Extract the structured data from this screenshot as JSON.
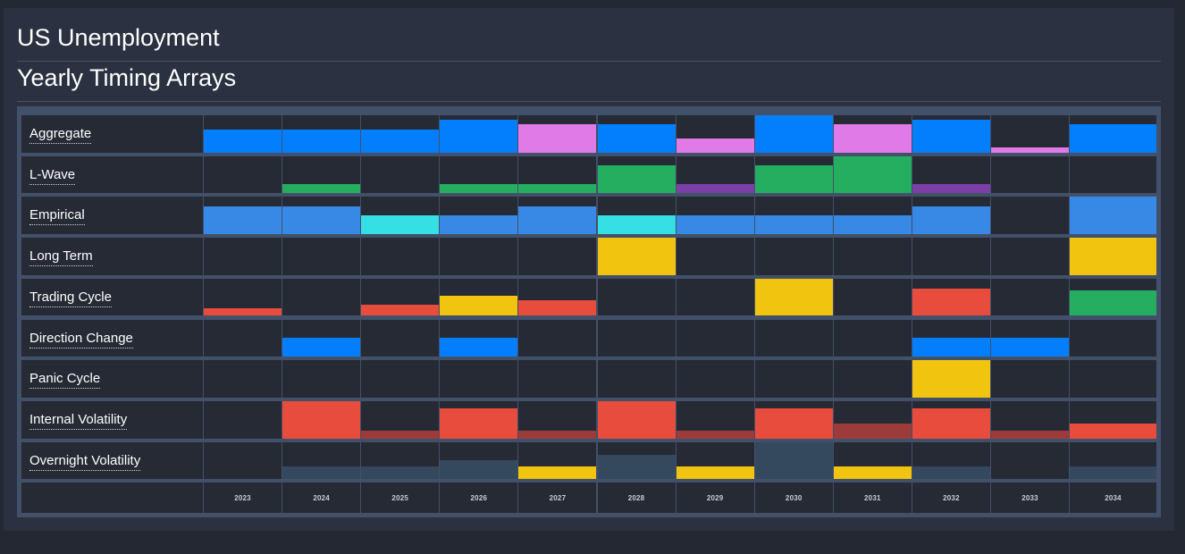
{
  "header": {
    "title": "US Unemployment",
    "subtitle": "Yearly Timing Arrays"
  },
  "colors": {
    "blue": "#037ffe",
    "pink": "#e07ae6",
    "green": "#25ae60",
    "purple": "#7b3fa6",
    "lightblue": "#3888e6",
    "cyan": "#36dfe3",
    "yellow": "#f1c40f",
    "red": "#e74c3c",
    "darkred": "#9c3c3a",
    "slate": "#34495e",
    "empty": "#262a35"
  },
  "chart_data": {
    "type": "heatmap",
    "title": "Yearly Timing Arrays",
    "ymax": 40,
    "years": [
      "2023",
      "2024",
      "2025",
      "2026",
      "2027",
      "2028",
      "2029",
      "2030",
      "2031",
      "2032",
      "2033",
      "2034"
    ],
    "rows": [
      {
        "label": "Aggregate",
        "cells": [
          {
            "v": 25,
            "c": "blue"
          },
          {
            "v": 25,
            "c": "blue"
          },
          {
            "v": 25,
            "c": "blue"
          },
          {
            "v": 35,
            "c": "blue"
          },
          {
            "v": 30,
            "c": "pink"
          },
          {
            "v": 30,
            "c": "blue"
          },
          {
            "v": 15,
            "c": "pink"
          },
          {
            "v": 40,
            "c": "blue"
          },
          {
            "v": 30,
            "c": "pink"
          },
          {
            "v": 35,
            "c": "blue"
          },
          {
            "v": 5,
            "c": "pink"
          },
          {
            "v": 30,
            "c": "blue"
          }
        ]
      },
      {
        "label": "L-Wave",
        "cells": [
          {
            "v": 0,
            "c": "empty"
          },
          {
            "v": 10,
            "c": "green"
          },
          {
            "v": 0,
            "c": "empty"
          },
          {
            "v": 10,
            "c": "green"
          },
          {
            "v": 10,
            "c": "green"
          },
          {
            "v": 30,
            "c": "green"
          },
          {
            "v": 10,
            "c": "purple"
          },
          {
            "v": 30,
            "c": "green"
          },
          {
            "v": 40,
            "c": "green"
          },
          {
            "v": 10,
            "c": "purple"
          },
          {
            "v": 0,
            "c": "empty"
          },
          {
            "v": 0,
            "c": "empty"
          }
        ]
      },
      {
        "label": "Empirical",
        "cells": [
          {
            "v": 30,
            "c": "lightblue"
          },
          {
            "v": 30,
            "c": "lightblue"
          },
          {
            "v": 20,
            "c": "cyan"
          },
          {
            "v": 20,
            "c": "lightblue"
          },
          {
            "v": 30,
            "c": "lightblue"
          },
          {
            "v": 20,
            "c": "cyan"
          },
          {
            "v": 20,
            "c": "lightblue"
          },
          {
            "v": 20,
            "c": "lightblue"
          },
          {
            "v": 20,
            "c": "lightblue"
          },
          {
            "v": 30,
            "c": "lightblue"
          },
          {
            "v": 0,
            "c": "empty"
          },
          {
            "v": 40,
            "c": "lightblue"
          }
        ]
      },
      {
        "label": "Long Term",
        "cells": [
          {
            "v": 0,
            "c": "empty"
          },
          {
            "v": 0,
            "c": "empty"
          },
          {
            "v": 0,
            "c": "empty"
          },
          {
            "v": 0,
            "c": "empty"
          },
          {
            "v": 0,
            "c": "empty"
          },
          {
            "v": 40,
            "c": "yellow"
          },
          {
            "v": 0,
            "c": "empty"
          },
          {
            "v": 0,
            "c": "empty"
          },
          {
            "v": 0,
            "c": "empty"
          },
          {
            "v": 0,
            "c": "empty"
          },
          {
            "v": 0,
            "c": "empty"
          },
          {
            "v": 40,
            "c": "yellow"
          }
        ]
      },
      {
        "label": "Trading Cycle",
        "cells": [
          {
            "v": 8,
            "c": "red"
          },
          {
            "v": 0,
            "c": "empty"
          },
          {
            "v": 12,
            "c": "red"
          },
          {
            "v": 22,
            "c": "yellow"
          },
          {
            "v": 17,
            "c": "red"
          },
          {
            "v": 0,
            "c": "empty"
          },
          {
            "v": 0,
            "c": "empty"
          },
          {
            "v": 40,
            "c": "yellow"
          },
          {
            "v": 0,
            "c": "empty"
          },
          {
            "v": 29,
            "c": "red"
          },
          {
            "v": 0,
            "c": "empty"
          },
          {
            "v": 27,
            "c": "green"
          }
        ]
      },
      {
        "label": "Direction Change",
        "cells": [
          {
            "v": 0,
            "c": "empty"
          },
          {
            "v": 20,
            "c": "blue"
          },
          {
            "v": 0,
            "c": "empty"
          },
          {
            "v": 20,
            "c": "blue"
          },
          {
            "v": 0,
            "c": "empty"
          },
          {
            "v": 0,
            "c": "empty"
          },
          {
            "v": 0,
            "c": "empty"
          },
          {
            "v": 0,
            "c": "empty"
          },
          {
            "v": 0,
            "c": "empty"
          },
          {
            "v": 20,
            "c": "blue"
          },
          {
            "v": 20,
            "c": "blue"
          },
          {
            "v": 0,
            "c": "empty"
          }
        ]
      },
      {
        "label": "Panic Cycle",
        "cells": [
          {
            "v": 0,
            "c": "empty"
          },
          {
            "v": 0,
            "c": "empty"
          },
          {
            "v": 0,
            "c": "empty"
          },
          {
            "v": 0,
            "c": "empty"
          },
          {
            "v": 0,
            "c": "empty"
          },
          {
            "v": 0,
            "c": "empty"
          },
          {
            "v": 0,
            "c": "empty"
          },
          {
            "v": 0,
            "c": "empty"
          },
          {
            "v": 0,
            "c": "empty"
          },
          {
            "v": 40,
            "c": "yellow"
          },
          {
            "v": 0,
            "c": "empty"
          },
          {
            "v": 0,
            "c": "empty"
          }
        ]
      },
      {
        "label": "Internal Volatility",
        "cells": [
          {
            "v": 0,
            "c": "empty"
          },
          {
            "v": 40,
            "c": "red"
          },
          {
            "v": 8,
            "c": "darkred"
          },
          {
            "v": 32,
            "c": "red"
          },
          {
            "v": 8,
            "c": "darkred"
          },
          {
            "v": 40,
            "c": "red"
          },
          {
            "v": 8,
            "c": "darkred"
          },
          {
            "v": 32,
            "c": "red"
          },
          {
            "v": 16,
            "c": "darkred"
          },
          {
            "v": 32,
            "c": "red"
          },
          {
            "v": 8,
            "c": "darkred"
          },
          {
            "v": 16,
            "c": "red"
          }
        ]
      },
      {
        "label": "Overnight Volatility",
        "cells": [
          {
            "v": 0,
            "c": "empty"
          },
          {
            "v": 14,
            "c": "slate"
          },
          {
            "v": 14,
            "c": "slate"
          },
          {
            "v": 20,
            "c": "slate"
          },
          {
            "v": 14,
            "c": "yellow"
          },
          {
            "v": 26,
            "c": "slate"
          },
          {
            "v": 14,
            "c": "yellow"
          },
          {
            "v": 40,
            "c": "slate"
          },
          {
            "v": 14,
            "c": "yellow"
          },
          {
            "v": 14,
            "c": "slate"
          },
          {
            "v": 0,
            "c": "empty"
          },
          {
            "v": 14,
            "c": "slate"
          }
        ]
      }
    ]
  }
}
